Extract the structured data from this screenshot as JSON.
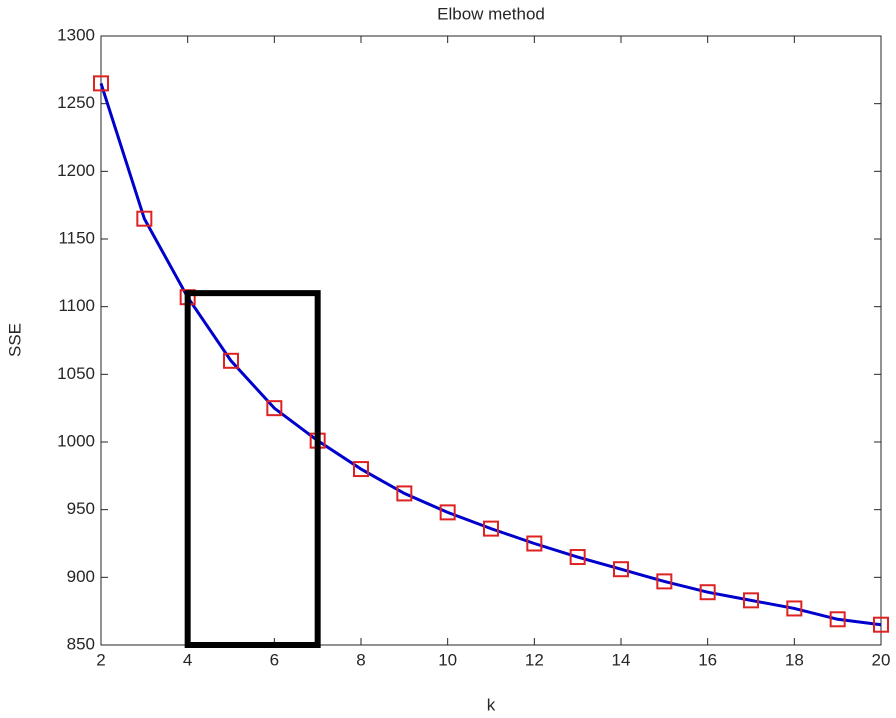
{
  "chart_data": {
    "type": "line",
    "title": "Elbow method",
    "x_label": "k",
    "y_label": "SSE",
    "x": [
      2,
      3,
      4,
      5,
      6,
      7,
      8,
      9,
      10,
      11,
      12,
      13,
      14,
      15,
      16,
      17,
      18,
      19,
      20
    ],
    "series": [
      {
        "name": "SSE",
        "color": "#0000cc",
        "marker_color": "#dd2222",
        "values": [
          1265,
          1165,
          1107,
          1060,
          1025,
          1001,
          980,
          962,
          948,
          936,
          925,
          915,
          906,
          897,
          889,
          883,
          877,
          869,
          865
        ]
      }
    ],
    "xlim": [
      2,
      20
    ],
    "xticks": [
      2,
      4,
      6,
      8,
      10,
      12,
      14,
      16,
      18,
      20
    ],
    "ylim": [
      850,
      1300
    ],
    "yticks": [
      850,
      900,
      950,
      1000,
      1050,
      1100,
      1150,
      1200,
      1250,
      1300
    ],
    "highlight_box": {
      "x": [
        4,
        7
      ],
      "y": [
        850,
        1110
      ]
    }
  }
}
